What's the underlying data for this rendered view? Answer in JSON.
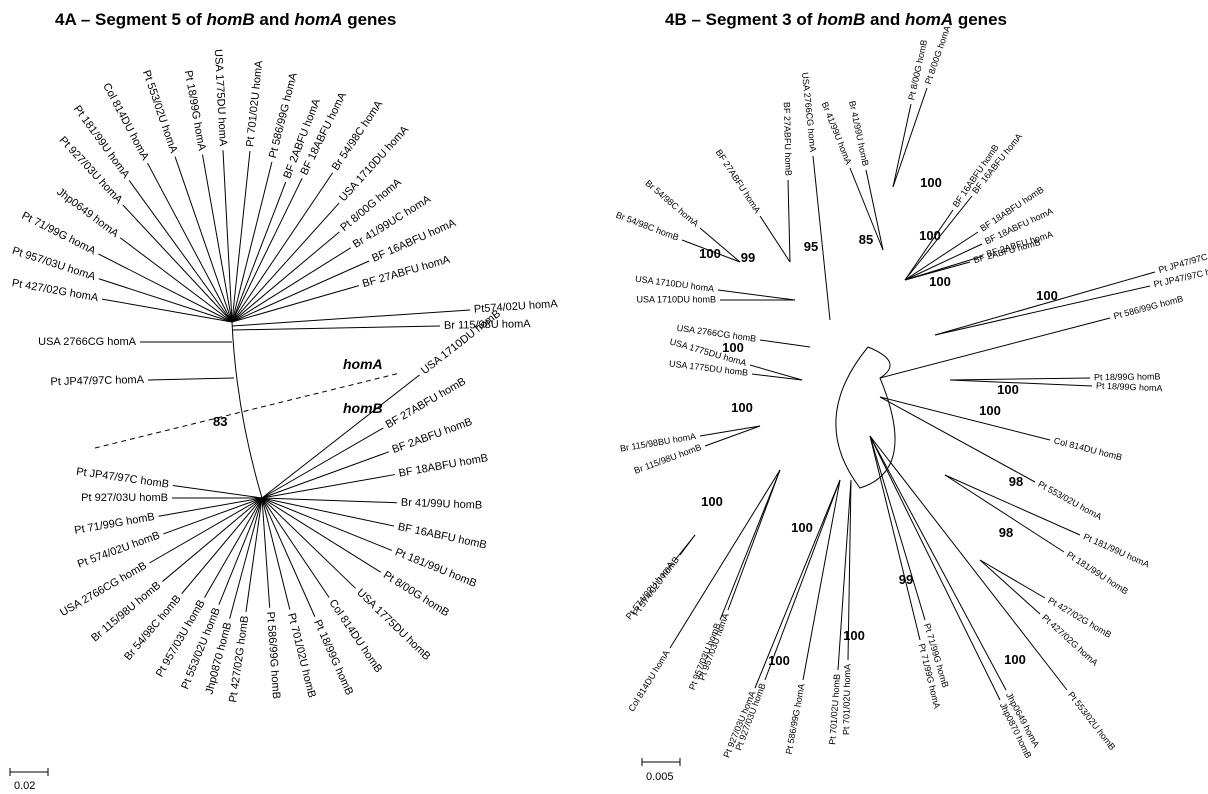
{
  "panelA": {
    "title": {
      "prefix": "4A – Segment 5 of ",
      "g1": "homB",
      "mid": " and ",
      "g2": "homA",
      "suffix": " genes"
    },
    "groupA": "homA",
    "groupB": "homB",
    "bootstrap": "83",
    "scale": "0.02",
    "leaves": [
      "Pt 427/02G homA",
      "Pt 957/03U homA",
      "Pt 71/99G homA",
      "Jhp0649 homA",
      "Pt 927/03U homA",
      "Pt 181/99U homA",
      "Col 814DU homA",
      "Pt 553/02U homA",
      "Pt 18/99G homA",
      "USA 1775DU homA",
      "Pt 701/02U homA",
      "Pt 586/99G homA",
      "BF 2ABFU homA",
      "BF 18ABFU homA",
      "Br 54/98C homA",
      "USA 1710DU homA",
      "Pt 8/00G homA",
      "Br 41/99UC homA",
      "BF 16ABFU homA",
      "BF 27ABFU homA",
      "Pt574/02U homA",
      "Br 115/98U homA",
      "USA 2766CG homA",
      "Pt JP47/97C homA",
      "USA 1710DU homB",
      "BF 27ABFU homB",
      "BF 2ABFU homB",
      "BF 18ABFU homB",
      "Br 41/99U homB",
      "BF 16ABFU homB",
      "Pt 181/99U homB",
      "Pt 8/00G homB",
      "USA 1775DU homB",
      "Col 814DU homB",
      "Pt 18/99G homB",
      "Pt 701/02U homB",
      "Pt 586/99G homB",
      "Pt 427/02G homB",
      "Jhp0870 homB",
      "Pt 553/02U homB",
      "Pt 957/03U homB",
      "Br 54/98C homB",
      "Br 115/98U homB",
      "USA 2766CG homB",
      "Pt 574/02U homB",
      "Pt 71/99G homB",
      "Pt 927/03U homB",
      "Pt JP47/97C homB"
    ]
  },
  "panelB": {
    "title": {
      "prefix": "4B – Segment 3 of ",
      "g1": "homB",
      "mid": " and ",
      "g2": "homA",
      "suffix": " genes"
    },
    "scale": "0.005",
    "bootstraps": [
      "100",
      "85",
      "100",
      "100",
      "100",
      "95",
      "99",
      "100",
      "100",
      "100",
      "100",
      "98",
      "98",
      "100",
      "100",
      "99",
      "100",
      "100",
      "100",
      "100"
    ],
    "leaves": [
      "Pt 8/00G homA",
      "Pt 8/00G homB",
      "Br 41/99U homB",
      "Br 41/99U homA",
      "USA 2766CG homA",
      "BF 27ABFU homB",
      "BF 27ABFU homA",
      "Br 54/98C homA",
      "Br 54/98C homB",
      "USA 1710DU homA",
      "USA 1710DU homB",
      "USA 2766CG homB",
      "USA 1775DU homA",
      "USA 1775DU homB",
      "Br 115/98BU homA",
      "Br 115/98U homB",
      "BF 16ABFU homB",
      "BF 16ABFU homA",
      "BF 18ABFU homB",
      "BF 18ABFU homA",
      "BF 2ABFU homA",
      "BF 2ABFU homB",
      "Pt JP47/97C homA",
      "Pt JP47/97C homB",
      "Pt 586/99G homB",
      "Pt 18/99G homB",
      "Pt 18/99G homA",
      "Col 814DU homB",
      "Pt 553/02U homA",
      "Pt 181/99U homA",
      "Pt 181/99U homB",
      "Pt 427/02G homB",
      "Pt 427/02G homA",
      "Pt 553/02U homB",
      "Jhp0649 homA",
      "Jhp0870 homB",
      "Pt 71/99G homB",
      "Pt 71/99G homA",
      "Pt 701/02U homA",
      "Pt 701/02U homB",
      "Pt 586/99G homA",
      "Pt 927/03U homB",
      "Pt 927/03U homA",
      "Pt 957/03U homA",
      "Pt 957/03U homB",
      "Col 814DU homA",
      "Pt 574/02U homB",
      "Pt 574/02U homA"
    ]
  }
}
